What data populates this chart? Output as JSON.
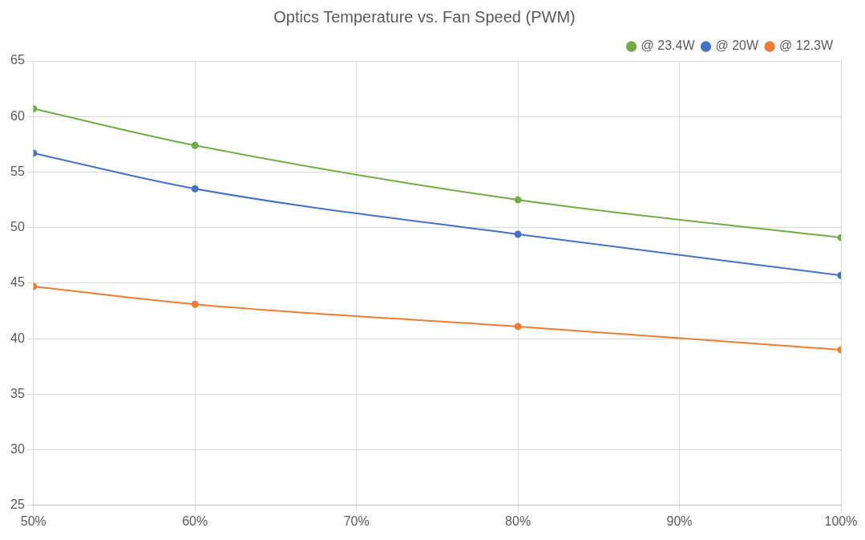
{
  "chart_data": {
    "type": "line",
    "title": "Optics Temperature vs. Fan Speed (PWM)",
    "x": [
      50,
      60,
      80,
      100
    ],
    "series": [
      {
        "name": "@ 23.4W",
        "color": "#70ad47",
        "values": [
          60.7,
          57.4,
          52.5,
          49.1
        ]
      },
      {
        "name": "@ 20W",
        "color": "#4472c4",
        "values": [
          56.7,
          53.5,
          49.4,
          45.7
        ]
      },
      {
        "name": "@ 12.3W",
        "color": "#ed7d31",
        "values": [
          44.7,
          43.1,
          41.1,
          39.0
        ]
      }
    ],
    "xlim": [
      50,
      100
    ],
    "xticks": [
      {
        "value": 50,
        "label": "50%"
      },
      {
        "value": 60,
        "label": "60%"
      },
      {
        "value": 70,
        "label": "70%"
      },
      {
        "value": 80,
        "label": "80%"
      },
      {
        "value": 90,
        "label": "90%"
      },
      {
        "value": 100,
        "label": "100%"
      }
    ],
    "ylim": [
      25,
      65
    ],
    "yticks": [
      25,
      30,
      35,
      40,
      45,
      50,
      55,
      60,
      65
    ],
    "grid": true,
    "legend": "top right",
    "marker": "circle",
    "line_style": "solid"
  }
}
